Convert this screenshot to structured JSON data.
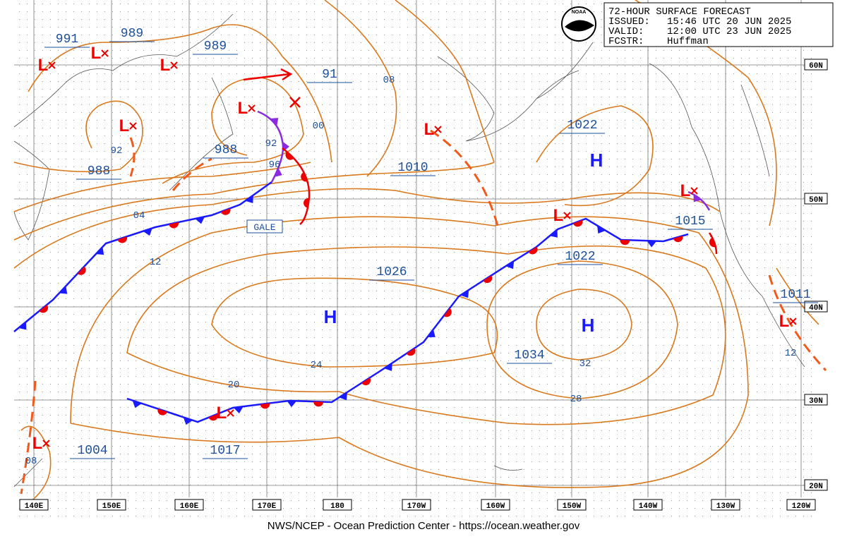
{
  "header": {
    "title": "72-HOUR SURFACE FORECAST",
    "issued_label": "ISSUED:",
    "issued": "15:46 UTC 20 JUN 2025",
    "valid_label": "VALID:",
    "valid": "12:00 UTC 23 JUN 2025",
    "forecaster_label": "FCSTR:",
    "forecaster": "Huffman"
  },
  "logo": "NOAA",
  "longitude_labels": [
    "140E",
    "150E",
    "160E",
    "170E",
    "180",
    "170W",
    "160W",
    "150W",
    "140W",
    "130W",
    "120W"
  ],
  "latitude_labels": [
    "60N",
    "50N",
    "40N",
    "30N",
    "20N"
  ],
  "pressure_labels": [
    "991",
    "989",
    "989",
    "91",
    "988",
    "988",
    "1010",
    "1022",
    "1015",
    "1026",
    "1022",
    "1011",
    "1034",
    "1004",
    "1017"
  ],
  "isobar_labels": [
    "08",
    "00",
    "92",
    "92",
    "96",
    "04",
    "12",
    "24",
    "20",
    "32",
    "28",
    "12",
    "08"
  ],
  "high_labels": [
    "H",
    "H",
    "H"
  ],
  "low_labels": [
    "L",
    "L",
    "L",
    "L",
    "L",
    "L",
    "L",
    "L",
    "L",
    "L",
    "L"
  ],
  "warning": "GALE",
  "footer": "NWS/NCEP - Ocean Prediction Center - https://ocean.weather.gov"
}
